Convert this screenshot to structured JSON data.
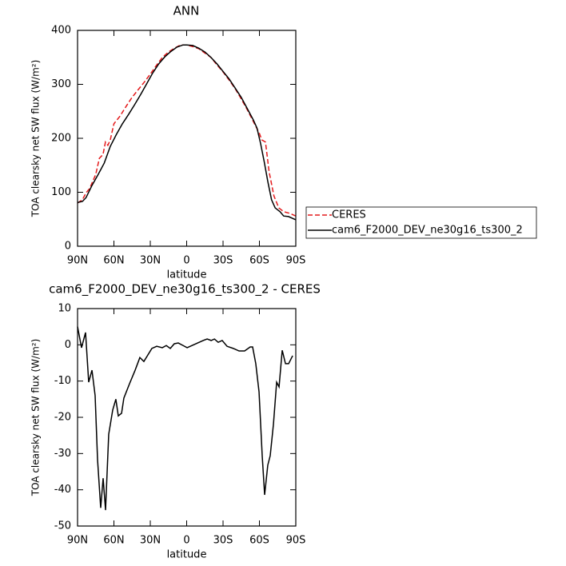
{
  "chart_data": [
    {
      "type": "line",
      "title": "ANN",
      "x_label": "latitude",
      "y_label": "TOA clearsky net SW flux (W/m²)",
      "xlim": [
        90,
        -90
      ],
      "xticks": [
        {
          "value": 90,
          "label": "90N"
        },
        {
          "value": 60,
          "label": "60N"
        },
        {
          "value": 30,
          "label": "30N"
        },
        0,
        {
          "value": -30,
          "label": "30S"
        },
        {
          "value": -60,
          "label": "60S"
        },
        {
          "value": -90,
          "label": "90S"
        }
      ],
      "ylim": [
        0,
        400
      ],
      "yticks": [
        0,
        100,
        200,
        300,
        400
      ],
      "legend": "right",
      "series": [
        {
          "name": "CERES",
          "color": "#e41a1c",
          "linestyle": "dashed",
          "x": [
            90,
            86,
            83,
            80,
            75,
            72,
            69,
            67,
            65,
            63,
            60,
            55,
            50,
            45,
            40,
            35,
            30,
            25,
            20,
            15,
            10,
            5,
            0,
            -5,
            -10,
            -15,
            -20,
            -25,
            -30,
            -35,
            -40,
            -45,
            -50,
            -55,
            -60,
            -62,
            -65,
            -68,
            -72,
            -76,
            -80,
            -85,
            -90
          ],
          "values": [
            80,
            86,
            99,
            107,
            133,
            163,
            170,
            193,
            187,
            197,
            227,
            241,
            259,
            276,
            290,
            304,
            319,
            335,
            350,
            360,
            367,
            373,
            373,
            370,
            366,
            358,
            350,
            336,
            323,
            308,
            292,
            273,
            253,
            231,
            209,
            197,
            193,
            138,
            93,
            71,
            64,
            61,
            56
          ]
        },
        {
          "name": "cam6_F2000_DEV_ne30g16_ts300_2",
          "color": "#000000",
          "linestyle": "solid",
          "x": [
            90,
            86,
            83,
            78,
            73,
            68,
            63,
            58,
            53,
            48,
            43,
            38,
            33,
            28,
            23,
            18,
            13,
            8,
            3,
            0,
            -5,
            -10,
            -15,
            -20,
            -25,
            -30,
            -35,
            -40,
            -45,
            -50,
            -55,
            -58,
            -61,
            -64,
            -67,
            -70,
            -73,
            -77,
            -80,
            -84,
            -90
          ],
          "values": [
            81,
            83,
            90,
            113,
            133,
            154,
            185,
            207,
            227,
            244,
            262,
            281,
            301,
            321,
            338,
            351,
            361,
            369,
            373,
            373,
            372,
            367,
            360,
            350,
            338,
            324,
            310,
            293,
            276,
            255,
            234,
            219,
            190,
            156,
            119,
            86,
            71,
            64,
            56,
            55,
            49
          ]
        }
      ]
    },
    {
      "type": "line",
      "title": "cam6_F2000_DEV_ne30g16_ts300_2 - CERES",
      "x_label": "latitude",
      "y_label": "TOA clearsky net SW flux (W/m²)",
      "xlim": [
        90,
        -90
      ],
      "xticks": [
        {
          "value": 90,
          "label": "90N"
        },
        {
          "value": 60,
          "label": "60N"
        },
        {
          "value": 30,
          "label": "30N"
        },
        0,
        {
          "value": -30,
          "label": "30S"
        },
        {
          "value": -60,
          "label": "60S"
        },
        {
          "value": -90,
          "label": "90S"
        }
      ],
      "ylim": [
        -50,
        10
      ],
      "yticks": [
        -50,
        -40,
        -30,
        -20,
        -10,
        0,
        10
      ],
      "series": [
        {
          "color": "#000000",
          "linestyle": "solid",
          "x": [
            90,
            86.7,
            83.4,
            80.8,
            78.1,
            75.5,
            73.5,
            70.9,
            68.9,
            66.9,
            64.3,
            61,
            58.4,
            56.4,
            53.7,
            51.8,
            47.1,
            42.5,
            38.6,
            35.3,
            28.7,
            24.7,
            20.1,
            16.8,
            13.5,
            10.2,
            6.9,
            2.9,
            -0.4,
            -4.4,
            -9,
            -13.6,
            -16.9,
            -20.2,
            -22.9,
            -26,
            -29.3,
            -33.3,
            -38.5,
            -43.2,
            -47.8,
            -52.4,
            -54.4,
            -57,
            -59.7,
            -62.3,
            -64.3,
            -66.9,
            -68.9,
            -71.6,
            -74.2,
            -76.2,
            -78.8,
            -81.5,
            -84.1,
            -87.4
          ],
          "values": [
            5,
            -0.8,
            3.4,
            -10.3,
            -7,
            -14,
            -31.7,
            -45,
            -36.8,
            -45.6,
            -24.7,
            -18,
            -15,
            -19.6,
            -18.9,
            -14.7,
            -10.7,
            -7,
            -3.5,
            -4.6,
            -1,
            -0.4,
            -0.8,
            -0.2,
            -1,
            0.3,
            0.5,
            -0.2,
            -0.8,
            -0.2,
            0.5,
            1.2,
            1.6,
            1.2,
            1.6,
            0.7,
            1.2,
            -0.4,
            -1,
            -1.7,
            -1.7,
            -0.6,
            -0.6,
            -5.2,
            -13,
            -30.6,
            -41.4,
            -33.2,
            -30.6,
            -21.8,
            -10.3,
            -11.6,
            -1.5,
            -5.2,
            -5.2,
            -3
          ]
        }
      ]
    }
  ]
}
